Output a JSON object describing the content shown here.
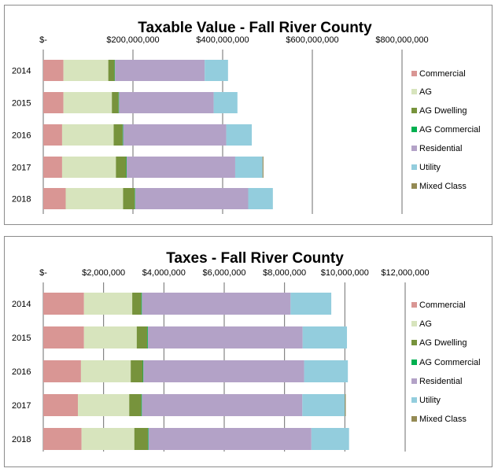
{
  "chart_data": [
    {
      "type": "bar",
      "orientation": "horizontal",
      "stacked": true,
      "title": "Taxable Value - Fall River County",
      "categories": [
        "2014",
        "2015",
        "2016",
        "2017",
        "2018"
      ],
      "xlim": [
        0,
        800000000
      ],
      "x_ticks": [
        0,
        200000000,
        400000000,
        600000000,
        800000000
      ],
      "x_tick_labels": [
        "$-",
        "$200,000,000",
        "$400,000,000",
        "$600,000,000",
        "$800,000,000"
      ],
      "axis_position": "top",
      "grid": true,
      "legend": "right",
      "series": [
        {
          "name": "Commercial",
          "color": "#d99694",
          "values": [
            45000000,
            45000000,
            42000000,
            42000000,
            50000000
          ]
        },
        {
          "name": "AG",
          "color": "#d7e4bd",
          "values": [
            100000000,
            108000000,
            115000000,
            120000000,
            128000000
          ]
        },
        {
          "name": "AG Dwelling",
          "color": "#77933c",
          "values": [
            14000000,
            15000000,
            20000000,
            23000000,
            26000000
          ]
        },
        {
          "name": "AG Commercial",
          "color": "#00b050",
          "values": [
            1000000,
            1000000,
            1000000,
            1000000,
            1000000
          ]
        },
        {
          "name": "Residential",
          "color": "#b3a2c7",
          "values": [
            200000000,
            211000000,
            230000000,
            242000000,
            252000000
          ]
        },
        {
          "name": "Utility",
          "color": "#93cddd",
          "values": [
            52000000,
            53000000,
            57000000,
            61000000,
            55000000
          ]
        },
        {
          "name": "Mixed Class",
          "color": "#948a54",
          "values": [
            0,
            0,
            0,
            2000000,
            0
          ]
        }
      ]
    },
    {
      "type": "bar",
      "orientation": "horizontal",
      "stacked": true,
      "title": "Taxes - Fall River County",
      "categories": [
        "2014",
        "2015",
        "2016",
        "2017",
        "2018"
      ],
      "xlim": [
        0,
        12000000
      ],
      "x_ticks": [
        0,
        2000000,
        4000000,
        6000000,
        8000000,
        10000000,
        12000000
      ],
      "x_tick_labels": [
        "$-",
        "$2,000,000",
        "$4,000,000",
        "$6,000,000",
        "$8,000,000",
        "$10,000,000",
        "$12,000,000"
      ],
      "axis_position": "top",
      "grid": true,
      "legend": "right",
      "series": [
        {
          "name": "Commercial",
          "color": "#d99694",
          "values": [
            1350000,
            1350000,
            1250000,
            1150000,
            1270000
          ]
        },
        {
          "name": "AG",
          "color": "#d7e4bd",
          "values": [
            1600000,
            1750000,
            1650000,
            1700000,
            1750000
          ]
        },
        {
          "name": "AG Dwelling",
          "color": "#77933c",
          "values": [
            300000,
            350000,
            400000,
            400000,
            450000
          ]
        },
        {
          "name": "AG Commercial",
          "color": "#00b050",
          "values": [
            20000,
            20000,
            20000,
            20000,
            20000
          ]
        },
        {
          "name": "Residential",
          "color": "#b3a2c7",
          "values": [
            4930000,
            5130000,
            5330000,
            5320000,
            5400000
          ]
        },
        {
          "name": "Utility",
          "color": "#93cddd",
          "values": [
            1350000,
            1470000,
            1450000,
            1410000,
            1250000
          ]
        },
        {
          "name": "Mixed Class",
          "color": "#948a54",
          "values": [
            0,
            0,
            0,
            30000,
            0
          ]
        }
      ]
    }
  ]
}
